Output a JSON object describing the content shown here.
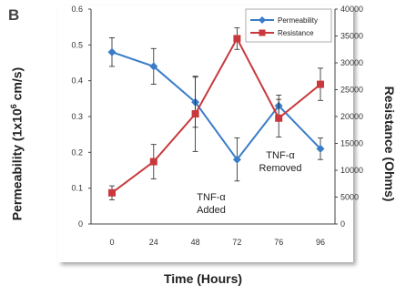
{
  "panel_label": "B",
  "chart_data": {
    "type": "line",
    "xlabel": "Time (Hours)",
    "ylabel_left": "Permeability (1x10",
    "ylabel_left_sup": "6",
    "ylabel_left_tail": " cm/s)",
    "ylabel_right": "Resistance (Ohms)",
    "categories": [
      "0",
      "24",
      "48",
      "72",
      "76",
      "96"
    ],
    "yleft": {
      "min": 0,
      "max": 0.6,
      "ticks": [
        "0",
        "0.1",
        "0.2",
        "0.3",
        "0.4",
        "0.5",
        "0.6"
      ]
    },
    "yright": {
      "min": 0,
      "max": 40000,
      "ticks": [
        "0",
        "5000",
        "10000",
        "15000",
        "20000",
        "25000",
        "30000",
        "35000",
        "40000"
      ]
    },
    "series": [
      {
        "name": "Permeability",
        "axis": "left",
        "color": "#3a7cc7",
        "marker": "diamond",
        "values": [
          0.48,
          0.44,
          0.34,
          0.18,
          0.33,
          0.21
        ],
        "errors": [
          0.04,
          0.05,
          0.07,
          0.06,
          0.03,
          0.03
        ]
      },
      {
        "name": "Resistance",
        "axis": "right",
        "color": "#c8383c",
        "marker": "square",
        "values": [
          5800,
          11600,
          20500,
          34500,
          19700,
          26000
        ],
        "errors": [
          1300,
          3200,
          7000,
          2000,
          3500,
          3000
        ]
      }
    ],
    "annotations": [
      {
        "lines": [
          "TNF-α",
          "Added"
        ],
        "x_index": 3
      },
      {
        "lines": [
          "TNF-α",
          "Removed"
        ],
        "x_index": 4
      }
    ],
    "legend_position": "top-right",
    "grid": false
  }
}
